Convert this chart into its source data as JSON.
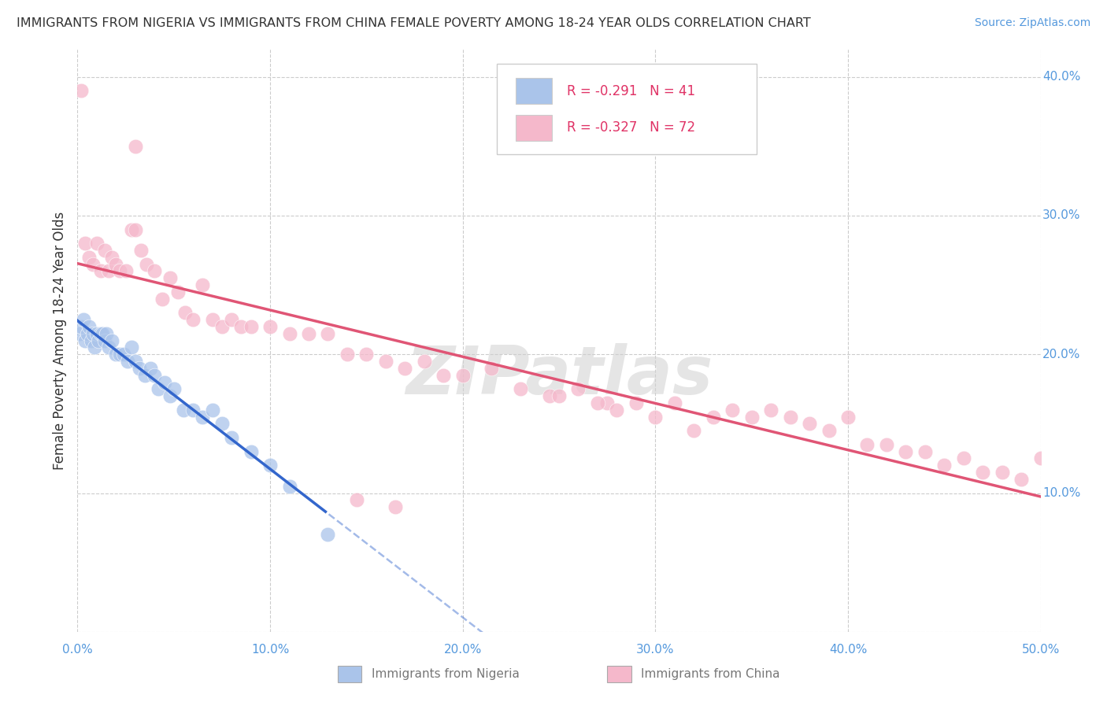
{
  "title": "IMMIGRANTS FROM NIGERIA VS IMMIGRANTS FROM CHINA FEMALE POVERTY AMONG 18-24 YEAR OLDS CORRELATION CHART",
  "source": "Source: ZipAtlas.com",
  "ylabel": "Female Poverty Among 18-24 Year Olds",
  "xlim": [
    0.0,
    0.5
  ],
  "ylim": [
    0.0,
    0.42
  ],
  "xticks": [
    0.0,
    0.1,
    0.2,
    0.3,
    0.4,
    0.5
  ],
  "xtick_labels": [
    "0.0%",
    "10.0%",
    "20.0%",
    "30.0%",
    "40.0%",
    "50.0%"
  ],
  "yticks": [
    0.0,
    0.1,
    0.2,
    0.3,
    0.4
  ],
  "ytick_labels": [
    "",
    "10.0%",
    "20.0%",
    "30.0%",
    "40.0%"
  ],
  "nigeria_R": -0.291,
  "nigeria_N": 41,
  "china_R": -0.327,
  "china_N": 72,
  "nigeria_color": "#aac4ea",
  "china_color": "#f5b8cb",
  "nigeria_line_color": "#3366cc",
  "china_line_color": "#e05575",
  "background_color": "#ffffff",
  "grid_color": "#cccccc",
  "watermark": "ZIPatlas",
  "title_color": "#333333",
  "source_color": "#5599dd",
  "tick_color": "#5599dd",
  "legend_text_color": "#e03366",
  "ylabel_color": "#333333",
  "bottom_legend_color": "#777777"
}
